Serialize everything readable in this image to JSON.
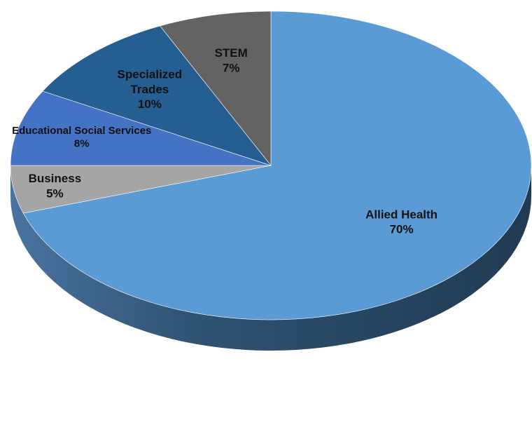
{
  "chart_data": {
    "type": "pie",
    "style": "3d",
    "title": "",
    "legend": "none",
    "categories": [
      "Allied Health",
      "Business",
      "Educational Social Services",
      "Specialized Trades",
      "STEM"
    ],
    "values": [
      70,
      5,
      8,
      10,
      7
    ],
    "slices": [
      {
        "label": "Allied Health",
        "display_label": [
          "Allied Health"
        ],
        "value": 70,
        "percent_label": "70%",
        "color": "#5b9bd5"
      },
      {
        "label": "Business",
        "display_label": [
          "Business"
        ],
        "value": 5,
        "percent_label": "5%",
        "color": "#a5a5a5"
      },
      {
        "label": "Educational Social Services",
        "display_label": [
          "Educational Social Services"
        ],
        "value": 8,
        "percent_label": "8%",
        "color": "#4472c4"
      },
      {
        "label": "Specialized Trades",
        "display_label": [
          "Specialized",
          "Trades"
        ],
        "value": 10,
        "percent_label": "10%",
        "color": "#255e91"
      },
      {
        "label": "STEM",
        "display_label": [
          "STEM"
        ],
        "value": 7,
        "percent_label": "7%",
        "color": "#636363"
      }
    ]
  }
}
